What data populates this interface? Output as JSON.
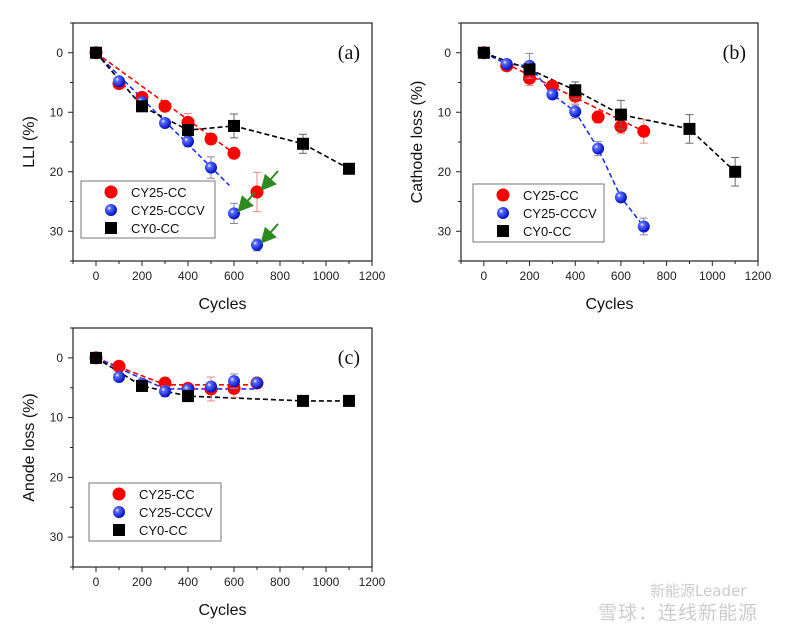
{
  "chart_data": [
    {
      "type": "scatter",
      "panel_label": "(a)",
      "xlabel": "Cycles",
      "ylabel": "LLI (%)",
      "xlim": [
        -100,
        1200
      ],
      "ylim": [
        -5,
        35
      ],
      "y_reversed": true,
      "xticks": [
        0,
        200,
        400,
        600,
        800,
        1000,
        1200
      ],
      "yticks": [
        0,
        10,
        20,
        30
      ],
      "grid": false,
      "legend": "bottom-left",
      "series": [
        {
          "name": "CY25-CC",
          "color": "#ff0000",
          "marker": "circle",
          "x": [
            0,
            100,
            200,
            300,
            400,
            500,
            600,
            700
          ],
          "y": [
            0,
            5.2,
            7.5,
            9.0,
            11.7,
            14.5,
            16.9,
            23.4
          ],
          "err": [
            0,
            0.4,
            0.5,
            0.5,
            1.5,
            0.5,
            0.5,
            3.3
          ],
          "fit": [
            [
              0,
              0
            ],
            [
              600,
              16.9
            ]
          ]
        },
        {
          "name": "CY25-CCCV",
          "color": "#1f2fff",
          "marker": "sphere",
          "x": [
            0,
            100,
            200,
            300,
            400,
            500,
            600,
            700
          ],
          "y": [
            0,
            4.8,
            8.3,
            11.8,
            14.9,
            19.3,
            27.0,
            32.3
          ],
          "err": [
            0,
            0.4,
            0.5,
            0.5,
            0.9,
            1.8,
            1.7,
            1.0
          ],
          "fit": [
            [
              0,
              0
            ],
            [
              580,
              22.3
            ]
          ]
        },
        {
          "name": "CY0-CC",
          "color": "#000000",
          "marker": "square",
          "x": [
            0,
            200,
            400,
            600,
            900,
            1100
          ],
          "y": [
            0,
            9.0,
            13.0,
            12.3,
            15.3,
            19.5
          ],
          "err": [
            0,
            0.4,
            0.6,
            2.0,
            1.6,
            0.4
          ],
          "connect": true
        }
      ],
      "annotations": [
        {
          "type": "arrow",
          "color": "#2e8b22",
          "points_to": [
            700,
            23.4
          ]
        },
        {
          "type": "arrow",
          "color": "#2e8b22",
          "points_to": [
            600,
            27.0
          ]
        },
        {
          "type": "arrow",
          "color": "#2e8b22",
          "points_to": [
            700,
            32.3
          ]
        }
      ]
    },
    {
      "type": "scatter",
      "panel_label": "(b)",
      "xlabel": "Cycles",
      "ylabel": "Cathode loss (%)",
      "xlim": [
        -100,
        1200
      ],
      "ylim": [
        -5,
        35
      ],
      "y_reversed": true,
      "xticks": [
        0,
        200,
        400,
        600,
        800,
        1000,
        1200
      ],
      "yticks": [
        0,
        10,
        20,
        30
      ],
      "grid": false,
      "legend": "bottom-left",
      "series": [
        {
          "name": "CY25-CC",
          "color": "#ff0000",
          "marker": "circle",
          "x": [
            0,
            100,
            200,
            300,
            400,
            500,
            600,
            700
          ],
          "y": [
            0,
            2.2,
            4.3,
            5.6,
            7.3,
            10.8,
            12.4,
            13.2
          ],
          "err": [
            0,
            0.4,
            1.2,
            0.5,
            1.3,
            1.0,
            1.2,
            2.0
          ],
          "fit": [
            [
              0,
              0
            ],
            [
              700,
              13.2
            ]
          ]
        },
        {
          "name": "CY25-CCCV",
          "color": "#1f2fff",
          "marker": "sphere",
          "x": [
            0,
            100,
            200,
            300,
            400,
            500,
            600,
            700
          ],
          "y": [
            0,
            1.9,
            2.2,
            7.0,
            9.9,
            16.1,
            24.3,
            29.2
          ],
          "err": [
            0,
            0.3,
            2.1,
            0.4,
            1.1,
            1.2,
            0.4,
            1.4
          ],
          "connect": true
        },
        {
          "name": "CY0-CC",
          "color": "#000000",
          "marker": "square",
          "x": [
            0,
            200,
            400,
            600,
            900,
            1100
          ],
          "y": [
            0,
            2.8,
            6.3,
            10.4,
            12.8,
            20.0
          ],
          "err": [
            0,
            0.5,
            1.4,
            2.4,
            2.4,
            2.4
          ],
          "connect": true
        }
      ]
    },
    {
      "type": "scatter",
      "panel_label": "(c)",
      "xlabel": "Cycles",
      "ylabel": "Anode loss (%)",
      "xlim": [
        -100,
        1200
      ],
      "ylim": [
        -5,
        35
      ],
      "y_reversed": true,
      "xticks": [
        0,
        200,
        400,
        600,
        800,
        1000,
        1200
      ],
      "yticks": [
        0,
        10,
        20,
        30
      ],
      "grid": false,
      "legend": "bottom-left",
      "series": [
        {
          "name": "CY25-CC",
          "color": "#ff0000",
          "marker": "circle",
          "x": [
            0,
            100,
            300,
            400,
            500,
            600,
            700
          ],
          "y": [
            0,
            1.4,
            4.2,
            5.1,
            5.2,
            5.1,
            4.2
          ],
          "err": [
            0,
            0.3,
            0.4,
            0.8,
            2.0,
            1.5,
            0.4
          ],
          "fit": [
            [
              0,
              0
            ],
            [
              300,
              4.5
            ],
            [
              700,
              4.5
            ]
          ]
        },
        {
          "name": "CY25-CCCV",
          "color": "#1f2fff",
          "marker": "sphere",
          "x": [
            0,
            100,
            200,
            300,
            400,
            500,
            600,
            700
          ],
          "y": [
            0,
            3.2,
            4.3,
            5.6,
            5.3,
            4.8,
            3.9,
            4.2
          ],
          "err": [
            0,
            0.3,
            0.4,
            0.9,
            0.6,
            0.6,
            1.2,
            0.4
          ],
          "fit": [
            [
              0,
              0
            ],
            [
              300,
              5.2
            ],
            [
              700,
              5.2
            ]
          ]
        },
        {
          "name": "CY0-CC",
          "color": "#000000",
          "marker": "square",
          "x": [
            0,
            200,
            400,
            900,
            1100
          ],
          "y": [
            0,
            4.7,
            6.4,
            7.2,
            7.2
          ],
          "err": [
            0,
            0.4,
            0.4,
            0.3,
            0.3
          ],
          "connect": true
        }
      ]
    }
  ],
  "watermark": {
    "line1": "新能源Leader",
    "line2": "雪球：连线新能源"
  }
}
